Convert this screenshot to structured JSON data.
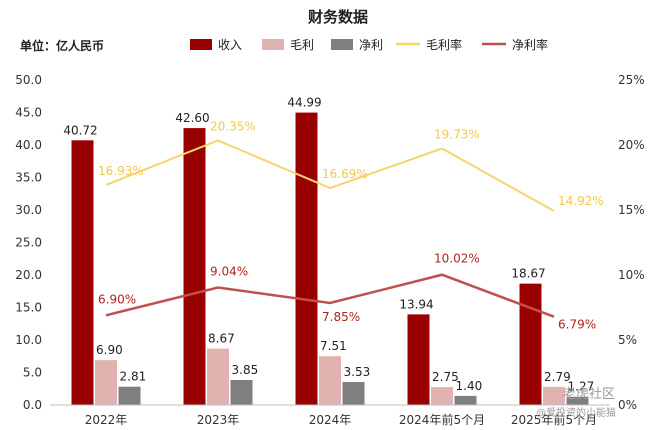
{
  "chart_data": {
    "type": "bar+line",
    "title": "财务数据",
    "unit_label": "单位：亿人民币",
    "categories": [
      "2022年",
      "2023年",
      "2024年",
      "2024年前5个月",
      "2025年前5个月"
    ],
    "bar_series": [
      {
        "name": "收入",
        "color": "#990000",
        "values": [
          40.72,
          42.6,
          44.99,
          13.94,
          18.67
        ],
        "labels": [
          "40.72",
          "42.60",
          "44.99",
          "13.94",
          "18.67"
        ]
      },
      {
        "name": "毛利",
        "color": "#e0b3b0",
        "values": [
          6.9,
          8.67,
          7.51,
          2.75,
          2.79
        ],
        "labels": [
          "6.90",
          "8.67",
          "7.51",
          "2.75",
          "2.79"
        ]
      },
      {
        "name": "净利",
        "color": "#7f7f7f",
        "values": [
          2.81,
          3.85,
          3.53,
          1.4,
          1.27
        ],
        "labels": [
          "2.81",
          "3.85",
          "3.53",
          "1.40",
          "1.27"
        ]
      }
    ],
    "line_series": [
      {
        "name": "毛利率",
        "color": "#f7d56a",
        "label_color": "#f2c94c",
        "values": [
          16.93,
          20.35,
          16.69,
          19.73,
          14.92
        ],
        "labels": [
          "16.93%",
          "20.35%",
          "16.69%",
          "19.73%",
          "14.92%"
        ]
      },
      {
        "name": "净利率",
        "color": "#c0504d",
        "label_color": "#b22222",
        "values": [
          6.9,
          9.04,
          7.85,
          10.02,
          6.79
        ],
        "labels": [
          "6.90%",
          "9.04%",
          "7.85%",
          "10.02%",
          "6.79%"
        ]
      }
    ],
    "y_left": {
      "min": 0,
      "max": 50,
      "ticks": [
        "0.0",
        "5.0",
        "10.0",
        "15.0",
        "20.0",
        "25.0",
        "30.0",
        "35.0",
        "40.0",
        "45.0",
        "50.0"
      ]
    },
    "y_right": {
      "min": 0,
      "max": 25,
      "ticks": [
        "0%",
        "5%",
        "10%",
        "15%",
        "20%",
        "25%"
      ]
    },
    "legend_position": "top",
    "grid": false
  },
  "watermark": {
    "line1": "老虎社区",
    "line2": "@爱投资的小能猫"
  }
}
